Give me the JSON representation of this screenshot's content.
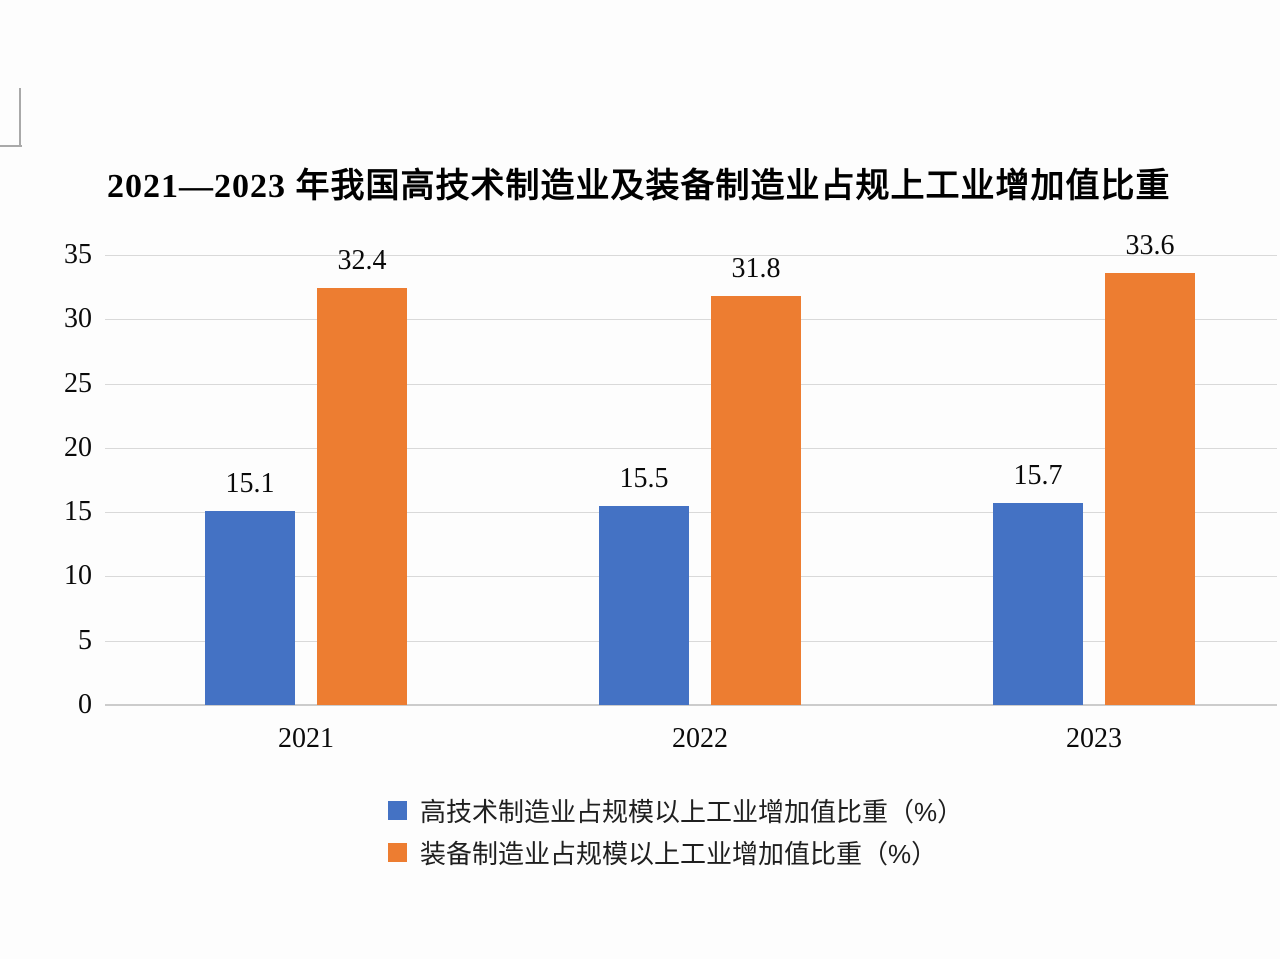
{
  "chart_data": {
    "type": "bar",
    "title": "2021—2023 年我国高技术制造业及装备制造业占规上工业增加值比重",
    "categories": [
      "2021",
      "2022",
      "2023"
    ],
    "series": [
      {
        "name": "高技术制造业占规模以上工业增加值比重（%）",
        "color": "#4472C4",
        "values": [
          15.1,
          15.5,
          15.7
        ]
      },
      {
        "name": "装备制造业占规模以上工业增加值比重（%）",
        "color": "#ED7D31",
        "values": [
          32.4,
          31.8,
          33.6
        ]
      }
    ],
    "xlabel": "",
    "ylabel": "",
    "ylim": [
      0,
      35
    ],
    "yticks": [
      0,
      5,
      10,
      15,
      20,
      25,
      30,
      35
    ],
    "grid": true,
    "data_labels": true,
    "legend_position": "bottom",
    "colors": {
      "gridline": "#D9D9D9",
      "axis_line": "#CCCCCC",
      "label_text": "#0A0A0A",
      "legend_text": "#1F1F1F",
      "background": "#FDFDFD"
    }
  }
}
